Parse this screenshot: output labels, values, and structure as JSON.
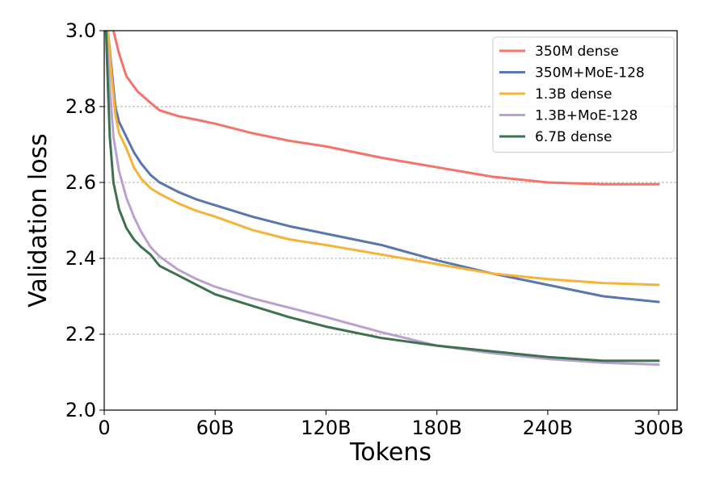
{
  "chart_data": {
    "type": "line",
    "title": "",
    "xlabel": "Tokens",
    "ylabel": "Validation loss",
    "xlim": [
      0,
      310
    ],
    "ylim": [
      2.0,
      3.0
    ],
    "x_ticks": [
      0,
      60,
      120,
      180,
      240,
      300
    ],
    "x_tick_labels": [
      "0",
      "60B",
      "120B",
      "180B",
      "240B",
      "300B"
    ],
    "y_ticks": [
      2.0,
      2.2,
      2.4,
      2.6,
      2.8,
      3.0
    ],
    "y_tick_labels": [
      "2.0",
      "2.2",
      "2.4",
      "2.6",
      "2.8",
      "3.0"
    ],
    "grid": "horizontal dashed",
    "legend_position": "top-right",
    "x_units": "billions of tokens",
    "series": [
      {
        "name": "350M dense",
        "color": "#f4736b",
        "x": [
          5,
          8,
          12,
          18,
          25,
          30,
          40,
          50,
          60,
          80,
          100,
          120,
          150,
          180,
          210,
          240,
          270,
          300
        ],
        "y": [
          3.0,
          2.94,
          2.88,
          2.84,
          2.81,
          2.79,
          2.775,
          2.765,
          2.755,
          2.73,
          2.71,
          2.695,
          2.665,
          2.64,
          2.615,
          2.6,
          2.595,
          2.595
        ]
      },
      {
        "name": "350M+MoE-128",
        "color": "#5b76ae",
        "x": [
          2,
          4,
          6,
          8,
          12,
          16,
          20,
          25,
          30,
          40,
          50,
          60,
          80,
          100,
          120,
          150,
          180,
          210,
          240,
          270,
          300
        ],
        "y": [
          3.0,
          2.9,
          2.8,
          2.76,
          2.72,
          2.68,
          2.65,
          2.62,
          2.6,
          2.575,
          2.555,
          2.54,
          2.51,
          2.485,
          2.465,
          2.435,
          2.395,
          2.36,
          2.33,
          2.3,
          2.285
        ]
      },
      {
        "name": "1.3B dense",
        "color": "#f6b339",
        "x": [
          2,
          4,
          6,
          8,
          12,
          16,
          20,
          25,
          30,
          40,
          50,
          60,
          80,
          100,
          120,
          150,
          180,
          210,
          240,
          270,
          300
        ],
        "y": [
          3.0,
          2.88,
          2.78,
          2.73,
          2.69,
          2.64,
          2.61,
          2.585,
          2.57,
          2.545,
          2.525,
          2.51,
          2.475,
          2.45,
          2.435,
          2.41,
          2.385,
          2.36,
          2.345,
          2.335,
          2.33
        ]
      },
      {
        "name": "1.3B+MoE-128",
        "color": "#b9a2cf",
        "x": [
          1,
          3,
          5,
          8,
          12,
          16,
          20,
          25,
          30,
          40,
          50,
          60,
          80,
          100,
          120,
          150,
          180,
          210,
          240,
          270,
          300
        ],
        "y": [
          3.0,
          2.85,
          2.72,
          2.63,
          2.56,
          2.51,
          2.47,
          2.43,
          2.405,
          2.37,
          2.345,
          2.325,
          2.295,
          2.27,
          2.245,
          2.205,
          2.17,
          2.15,
          2.135,
          2.125,
          2.12
        ]
      },
      {
        "name": "6.7B dense",
        "color": "#3d7150",
        "x": [
          1,
          2,
          3,
          5,
          8,
          12,
          16,
          20,
          25,
          30,
          40,
          50,
          60,
          80,
          100,
          120,
          150,
          180,
          210,
          240,
          270,
          300
        ],
        "y": [
          3.0,
          2.85,
          2.72,
          2.6,
          2.53,
          2.48,
          2.45,
          2.43,
          2.41,
          2.38,
          2.355,
          2.33,
          2.305,
          2.275,
          2.245,
          2.22,
          2.19,
          2.17,
          2.155,
          2.14,
          2.13,
          2.13
        ]
      }
    ]
  }
}
